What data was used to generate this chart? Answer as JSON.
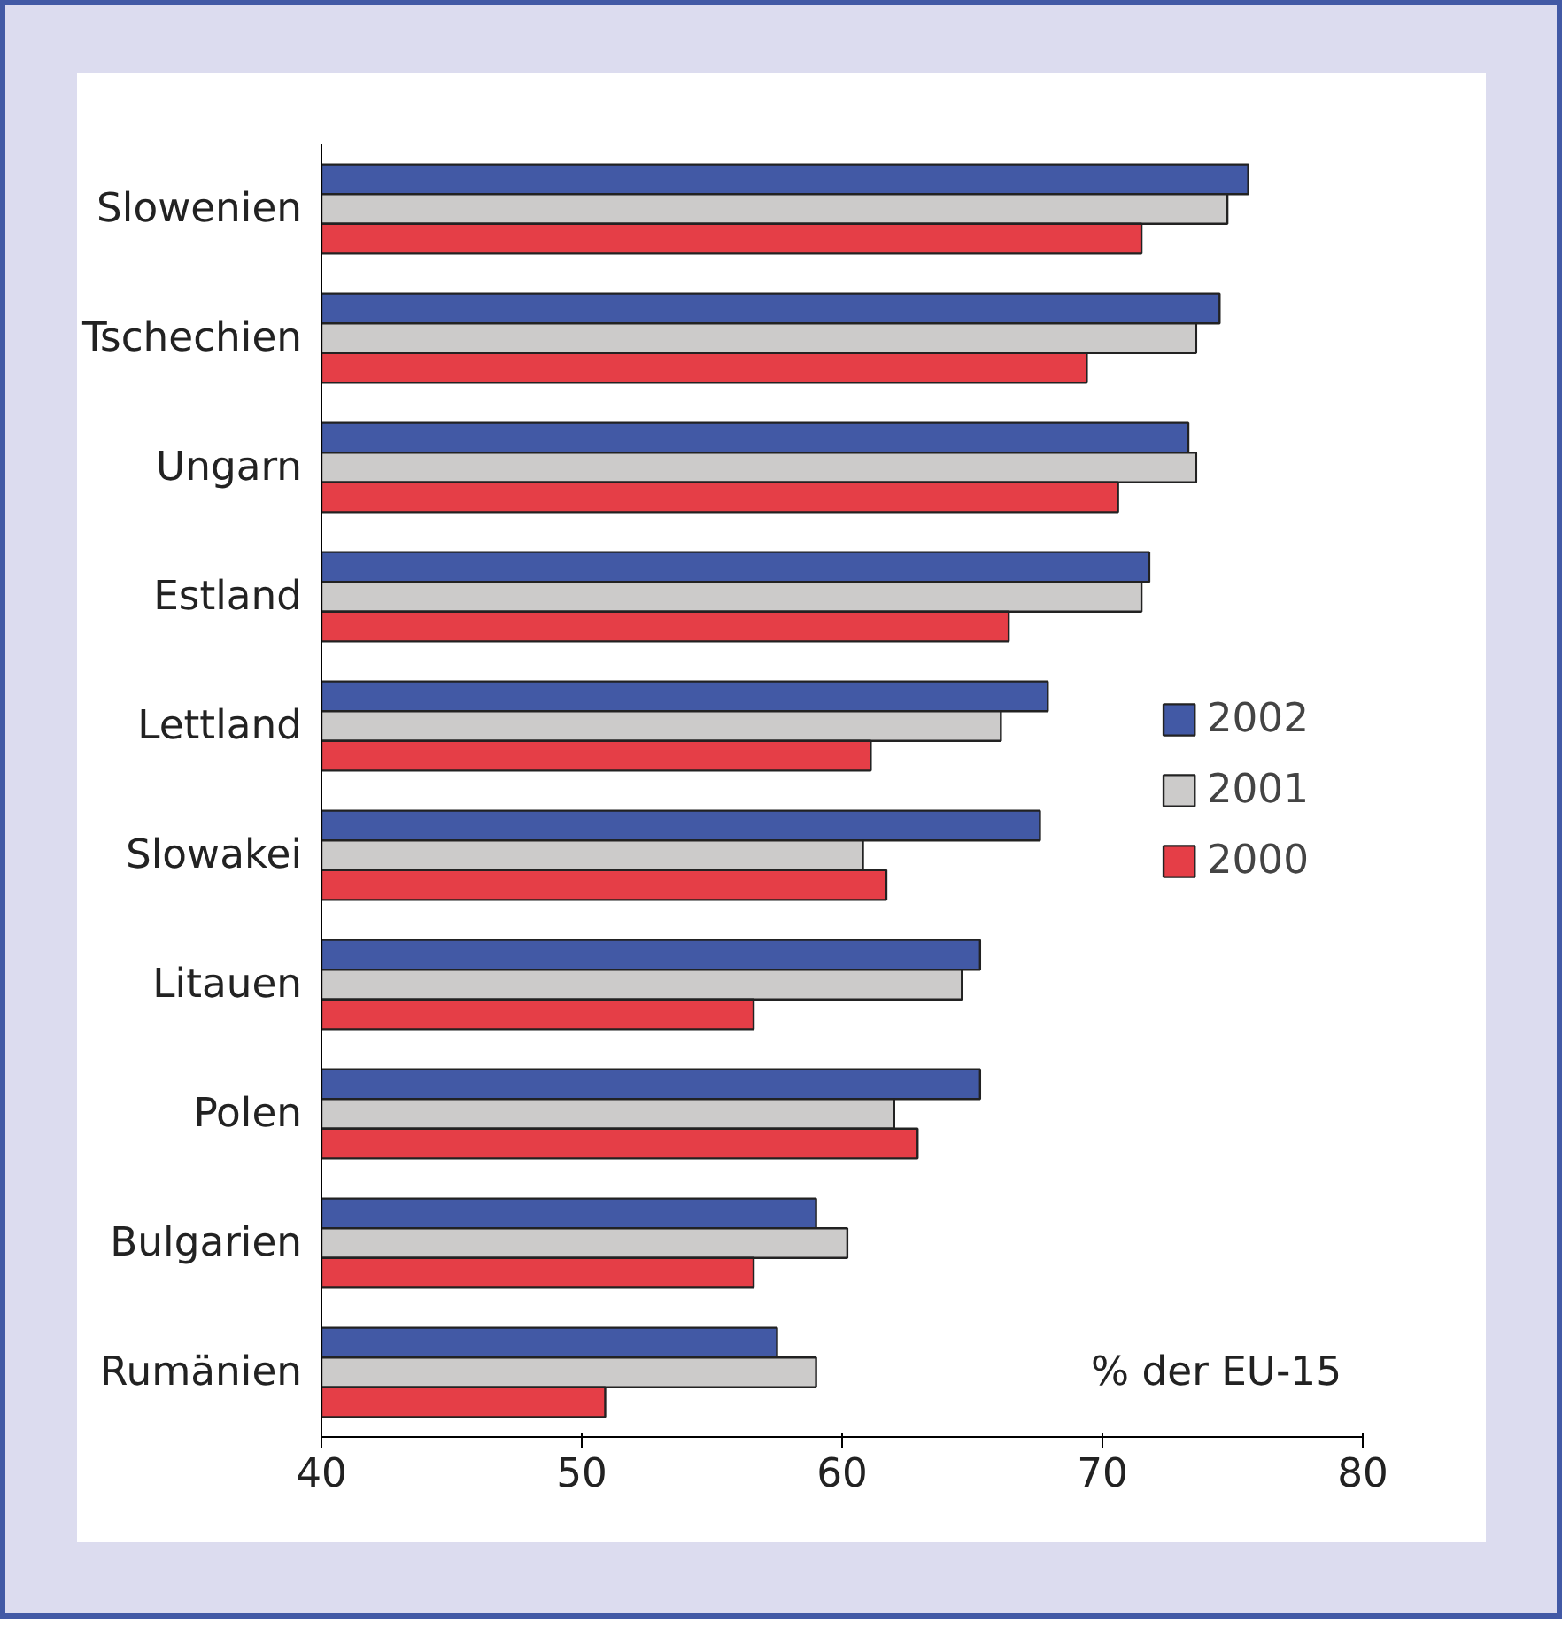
{
  "chart_data": {
    "type": "bar",
    "orientation": "horizontal",
    "categories": [
      "Slowenien",
      "Tschechien",
      "Ungarn",
      "Estland",
      "Lettland",
      "Slowakei",
      "Litauen",
      "Polen",
      "Bulgarien",
      "Rumänien"
    ],
    "series": [
      {
        "name": "2002",
        "color": "#4259a5",
        "values": [
          75.6,
          74.5,
          73.3,
          71.8,
          67.9,
          67.6,
          65.3,
          65.3,
          59.0,
          57.5
        ]
      },
      {
        "name": "2001",
        "color": "#cccbca",
        "values": [
          74.8,
          73.6,
          73.6,
          71.5,
          66.1,
          60.8,
          64.6,
          62.0,
          60.2,
          59.0
        ]
      },
      {
        "name": "2000",
        "color": "#e53e47",
        "values": [
          71.5,
          69.4,
          70.6,
          66.4,
          61.1,
          61.7,
          56.6,
          62.9,
          56.6,
          50.9
        ]
      }
    ],
    "xlim": [
      40,
      80
    ],
    "xticks": [
      40,
      50,
      60,
      70,
      80
    ],
    "annotations": [
      {
        "text": "% der EU-15"
      }
    ],
    "legend": "right",
    "grid": false
  }
}
